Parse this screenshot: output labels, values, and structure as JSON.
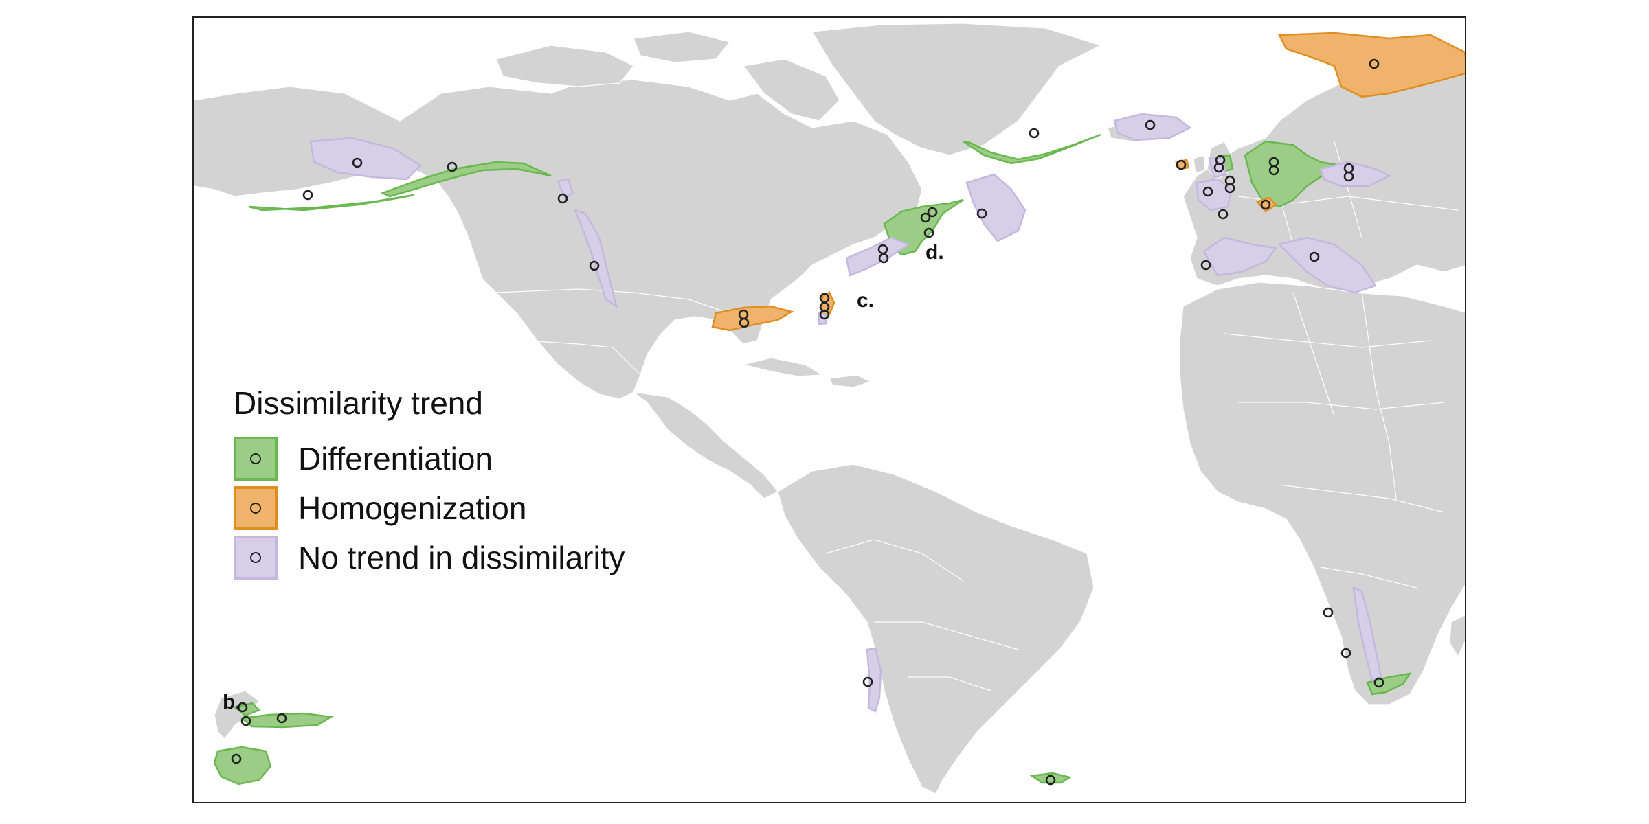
{
  "legend": {
    "title": "Dissimilarity trend",
    "items": [
      {
        "label": "Differentiation",
        "fill": "#9bcd86",
        "stroke": "#6ab84f"
      },
      {
        "label": "Homogenization",
        "fill": "#efb36c",
        "stroke": "#e08d22"
      },
      {
        "label": "No trend in dissimilarity",
        "fill": "#d7cfe8",
        "stroke": "#c4b8de"
      }
    ]
  },
  "panel_labels": {
    "b": "b.",
    "c": "c.",
    "d": "d."
  },
  "colors": {
    "land": "#d3d3d3",
    "differentiation": "#9bcd86",
    "homogenization": "#efb36c",
    "no_trend": "#d7cfe8"
  }
}
